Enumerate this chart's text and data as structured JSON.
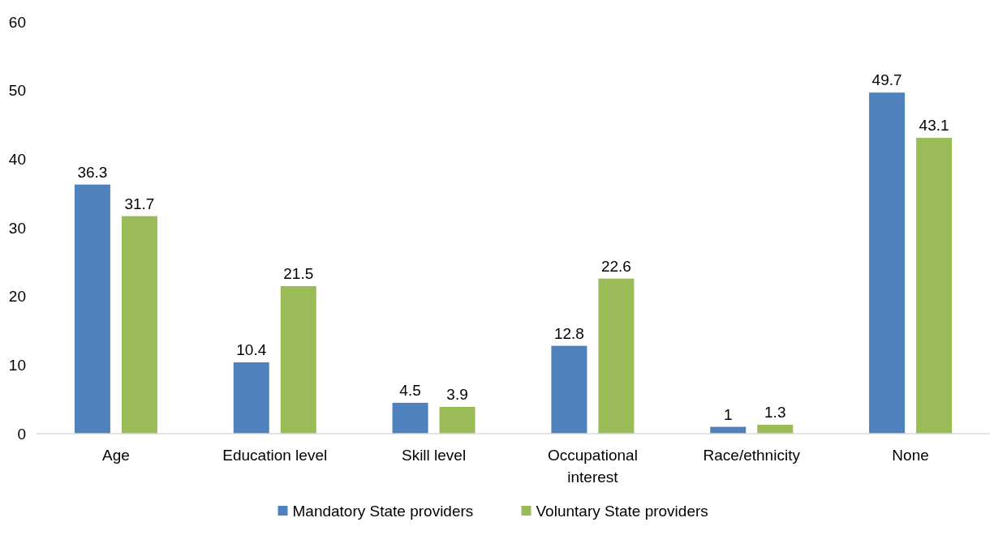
{
  "chart_data": {
    "type": "bar",
    "categories": [
      "Age",
      "Education level",
      "Skill level",
      "Occupational interest",
      "Race/ethnicity",
      "None"
    ],
    "series": [
      {
        "name": "Mandatory State providers",
        "color": "#4f81bd",
        "values": [
          36.3,
          10.4,
          4.5,
          12.8,
          1,
          49.7
        ]
      },
      {
        "name": "Voluntary State providers",
        "color": "#9bbb59",
        "values": [
          31.7,
          21.5,
          3.9,
          22.6,
          1.3,
          43.1
        ]
      }
    ],
    "ylim": [
      0,
      60
    ],
    "yticks": [
      0,
      10,
      20,
      30,
      40,
      50,
      60
    ],
    "grid": false,
    "legend": "bottom",
    "data_labels": true
  }
}
